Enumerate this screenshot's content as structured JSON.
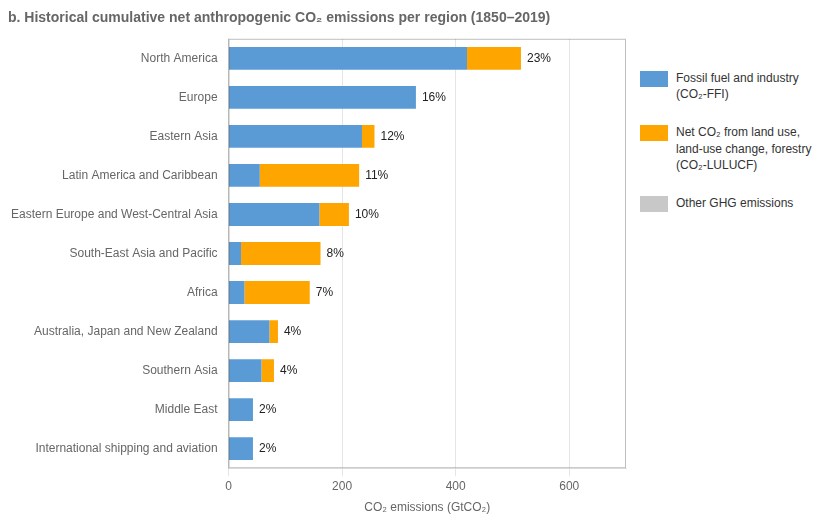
{
  "chart_data": {
    "type": "bar",
    "orientation": "horizontal",
    "stacked": true,
    "title": "b. Historical cumulative net anthropogenic CO₂ emissions per region (1850–2019)",
    "xlabel": "CO₂ emissions (GtCO₂)",
    "categories": [
      "North America",
      "Europe",
      "Eastern Asia",
      "Latin America and Caribbean",
      "Eastern Europe and West-Central Asia",
      "South-East Asia and Pacific",
      "Africa",
      "Australia, Japan and New Zealand",
      "Southern Asia",
      "Middle East",
      "International shipping and aviation"
    ],
    "series": [
      {
        "name": "Fossil fuel and industry (CO₂-FFI)",
        "color": "#5b9bd5",
        "values": [
          420,
          330,
          235,
          55,
          160,
          22,
          28,
          72,
          58,
          43,
          43
        ]
      },
      {
        "name": "Net CO₂ from land use, land-use change, forestry (CO₂-LULUCF)",
        "color": "#ffa500",
        "values": [
          95,
          0,
          22,
          175,
          52,
          140,
          115,
          15,
          22,
          0,
          0
        ]
      },
      {
        "name": "Other GHG emissions",
        "color": "#c8c8c8",
        "values": [
          null,
          null,
          null,
          null,
          null,
          null,
          null,
          null,
          null,
          null,
          null
        ]
      }
    ],
    "annotations": [
      "23%",
      "16%",
      "12%",
      "11%",
      "10%",
      "8%",
      "7%",
      "4%",
      "4%",
      "2%",
      "2%"
    ],
    "xlim": [
      0,
      700
    ],
    "xticks": [
      0,
      200,
      400,
      600
    ],
    "grid": true,
    "legend": "right"
  }
}
